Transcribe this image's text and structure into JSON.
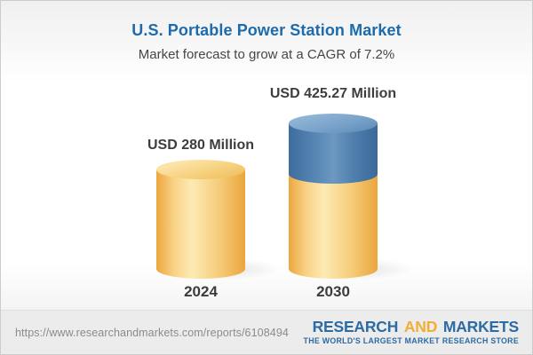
{
  "header": {
    "title": "U.S. Portable Power Station Market",
    "subtitle": "Market forecast to grow at a CAGR of 7.2%"
  },
  "chart_data": {
    "type": "bar",
    "variant": "3d-cylinder-columns",
    "title": "U.S. Portable Power Station Market",
    "subtitle": "Market forecast to grow at a CAGR of 7.2%",
    "categories": [
      "2024",
      "2030"
    ],
    "values": [
      280,
      425.27
    ],
    "value_labels": [
      "USD 280 Million",
      "USD 425.27 Million"
    ],
    "unit": "USD Million",
    "cagr_pct": 7.2,
    "segments": {
      "2024": {
        "base": 280
      },
      "2030": {
        "base": 280,
        "growth": 145.27
      }
    },
    "colors": {
      "base_segment": "#f3c66f",
      "growth_segment": "#5b89b6",
      "title_text": "#1d6bad",
      "label_text": "#3d3d3d"
    },
    "legend": "none",
    "axes": "none; data labels above bars, year labels below bars"
  },
  "footer": {
    "url": "https://www.researchandmarkets.com/reports/6108494",
    "logo": {
      "part1": "RESEARCH",
      "part2": "AND",
      "part3": "MARKETS",
      "tagline": "THE WORLD'S LARGEST MARKET RESEARCH STORE",
      "blue": "#2d6ba5",
      "gold": "#f1ae33"
    }
  }
}
